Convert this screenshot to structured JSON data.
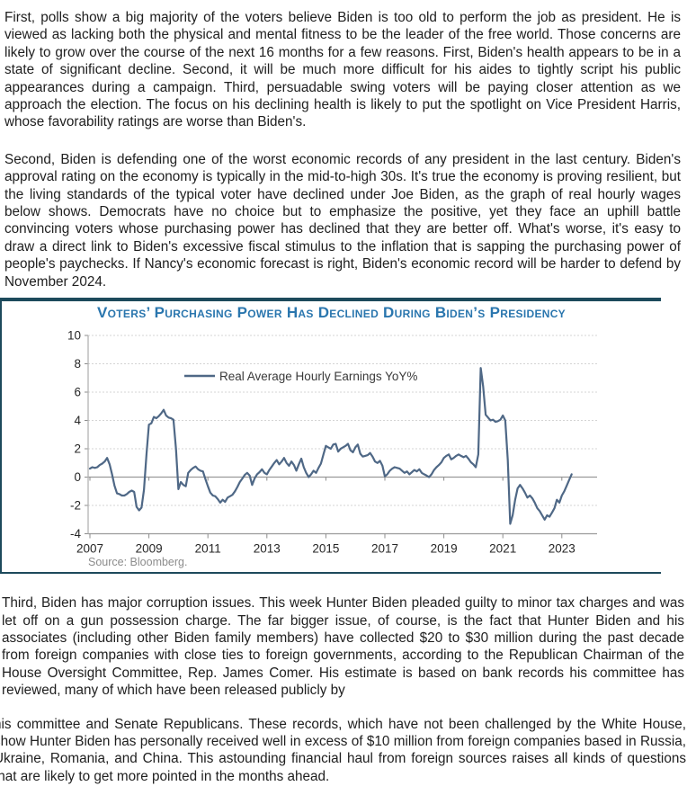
{
  "document": {
    "paragraphs": [
      "First, polls show a big majority of the voters believe Biden is too old to perform the job as president.  He is viewed as lacking both the physical and mental fitness to be the leader of the free world.  Those concerns are likely to grow over the course of the next 16 months for a few reasons.  First, Biden's health appears to be in a state of significant decline.  Second, it will be much more difficult for his aides to tightly script his public appearances during a campaign.  Third, persuadable swing voters will be paying closer attention as we approach the election.  The focus on his declining health is likely to put the spotlight on Vice President Harris, whose favorability ratings are worse than Biden's.",
      "Second, Biden is defending one of the worst economic records of any president in the last century.  Biden's approval rating on the economy is typically in the mid-to-high 30s.  It's true the economy is proving resilient, but the living standards of the typical voter have declined under Joe Biden, as the graph of real hourly wages below shows.  Democrats have no choice but to emphasize the positive, yet they face an uphill battle convincing voters whose purchasing power has declined that they are better off.  What's worse, it's easy to draw a direct link to Biden's excessive fiscal stimulus to the inflation that is sapping the purchasing power of people's paychecks.  If Nancy's economic forecast is right, Biden's economic record will be harder to defend by November 2024.",
      "Third, Biden has major corruption issues.  This week Hunter Biden pleaded guilty to minor tax charges and was let off on a gun possession charge.  The far bigger issue, of course, is the fact that Hunter Biden and his associates (including other Biden family members) have collected $20 to $30 million during the past decade from foreign companies with close ties to foreign governments, according to the Republican Chairman of the House Oversight Committee, Rep. James Comer.  His estimate is based on bank records his committee has reviewed, many of which have been released publicly by",
      "his committee and Senate Republicans.  These records, which have not been challenged by the White House, show Hunter Biden has personally received well in excess of $10 million from foreign companies based in Russia, Ukraine, Romania, and China.  This astounding financial haul from foreign sources raises all kinds of questions that are likely to get more pointed in the months ahead."
    ]
  },
  "chart_data": {
    "type": "line",
    "title": "Voters’ Purchasing Power Has Declined During Biden’s Presidency",
    "source": "Source: Bloomberg.",
    "legend_position": "upper-left-inside",
    "grid": "horizontal-dashed",
    "x_ticks": [
      2007,
      2009,
      2011,
      2013,
      2015,
      2017,
      2019,
      2021,
      2023
    ],
    "y_ticks": [
      10,
      8,
      6,
      4,
      2,
      0,
      -2,
      -4
    ],
    "ylim": [
      -4,
      10
    ],
    "xlim": [
      2007,
      2024.3
    ],
    "series": [
      {
        "name": "Real Average Hourly Earnings YoY%",
        "x_start": 2007.0,
        "x_step_years": 0.08333,
        "values": [
          0.6,
          0.7,
          0.65,
          0.7,
          0.85,
          0.95,
          1.1,
          1.35,
          0.9,
          0.2,
          -0.6,
          -1.15,
          -1.2,
          -1.3,
          -1.3,
          -1.2,
          -1.05,
          -0.95,
          -1.05,
          -2.1,
          -2.35,
          -2.15,
          -0.9,
          1.6,
          3.7,
          3.8,
          4.25,
          4.15,
          4.3,
          4.5,
          4.75,
          4.35,
          4.2,
          4.15,
          4.05,
          2.0,
          -0.85,
          -0.35,
          -0.55,
          -0.65,
          0.3,
          0.5,
          0.65,
          0.75,
          0.55,
          0.45,
          0.4,
          -0.15,
          -0.65,
          -1.1,
          -1.3,
          -1.35,
          -1.55,
          -1.8,
          -1.6,
          -1.75,
          -1.45,
          -1.35,
          -1.25,
          -1.0,
          -0.7,
          -0.35,
          -0.1,
          0.15,
          0.3,
          0.1,
          -0.55,
          -0.1,
          0.2,
          0.35,
          0.55,
          0.3,
          0.2,
          0.5,
          0.75,
          1.0,
          1.2,
          0.9,
          1.1,
          1.35,
          1.0,
          0.8,
          1.1,
          0.85,
          0.45,
          0.9,
          1.3,
          0.7,
          0.3,
          0.0,
          0.2,
          0.45,
          0.3,
          0.65,
          0.95,
          1.6,
          2.2,
          2.1,
          2.0,
          2.3,
          2.35,
          1.8,
          2.0,
          2.1,
          2.2,
          2.35,
          1.9,
          1.75,
          2.1,
          2.3,
          1.65,
          1.45,
          1.5,
          1.55,
          1.7,
          1.45,
          1.1,
          1.0,
          1.15,
          0.8,
          0.05,
          0.2,
          0.45,
          0.6,
          0.7,
          0.65,
          0.6,
          0.45,
          0.3,
          0.4,
          0.2,
          0.35,
          0.5,
          0.4,
          0.55,
          0.3,
          0.2,
          0.1,
          0.0,
          0.2,
          0.5,
          0.7,
          0.85,
          1.05,
          1.35,
          1.5,
          1.6,
          1.25,
          1.35,
          1.5,
          1.6,
          1.5,
          1.4,
          1.5,
          1.3,
          1.05,
          0.9,
          0.7,
          1.6,
          7.7,
          6.4,
          4.4,
          4.2,
          4.0,
          4.05,
          3.9,
          3.95,
          4.05,
          4.35,
          4.0,
          1.2,
          -3.3,
          -2.7,
          -1.6,
          -0.8,
          -0.55,
          -0.8,
          -1.1,
          -1.45,
          -1.3,
          -1.5,
          -1.8,
          -2.2,
          -2.4,
          -2.7,
          -3.0,
          -2.7,
          -2.8,
          -2.5,
          -2.2,
          -1.6,
          -1.8,
          -1.3,
          -1.0,
          -0.6,
          -0.2,
          0.2
        ]
      }
    ],
    "colors": {
      "line": "#4f6886",
      "title": "#2a76ae",
      "rule": "#1d4a5c",
      "grid": "#d4d4d4",
      "zero_line": "#9a9a9a",
      "axis": "#b3b3b3",
      "tick": "#8c8c8c",
      "tick_label": "#262626",
      "legend_text": "#3a3a3a",
      "source_text": "#8c8c8c"
    }
  }
}
